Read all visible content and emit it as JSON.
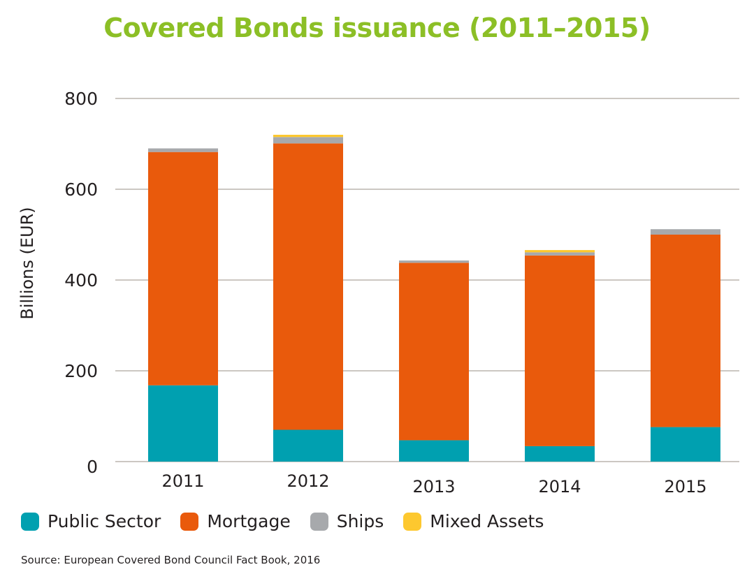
{
  "chart_data": {
    "type": "bar",
    "stacked": true,
    "title": "Covered Bonds issuance (2011–2015)",
    "xlabel": "",
    "ylabel": "Billions (EUR)",
    "ylim": [
      0,
      800
    ],
    "yticks": [
      "0",
      "200",
      "400",
      "600",
      "800"
    ],
    "categories": [
      "2011",
      "2012",
      "2013",
      "2014",
      "2015"
    ],
    "grid": true,
    "legend_position": "bottom",
    "series": [
      {
        "name": "Public Sector",
        "color": "#00a0b0",
        "values": [
          168,
          70,
          47,
          34,
          76
        ]
      },
      {
        "name": "Mortgage",
        "color": "#e95a0c",
        "values": [
          514,
          631,
          391,
          420,
          424
        ]
      },
      {
        "name": "Ships",
        "color": "#a7a9ac",
        "values": [
          8,
          14,
          5,
          7,
          12
        ]
      },
      {
        "name": "Mixed Assets",
        "color": "#fdc82f",
        "values": [
          0,
          5,
          0,
          5,
          0
        ]
      }
    ]
  },
  "source": "Source: European Covered Bond Council Fact Book, 2016"
}
